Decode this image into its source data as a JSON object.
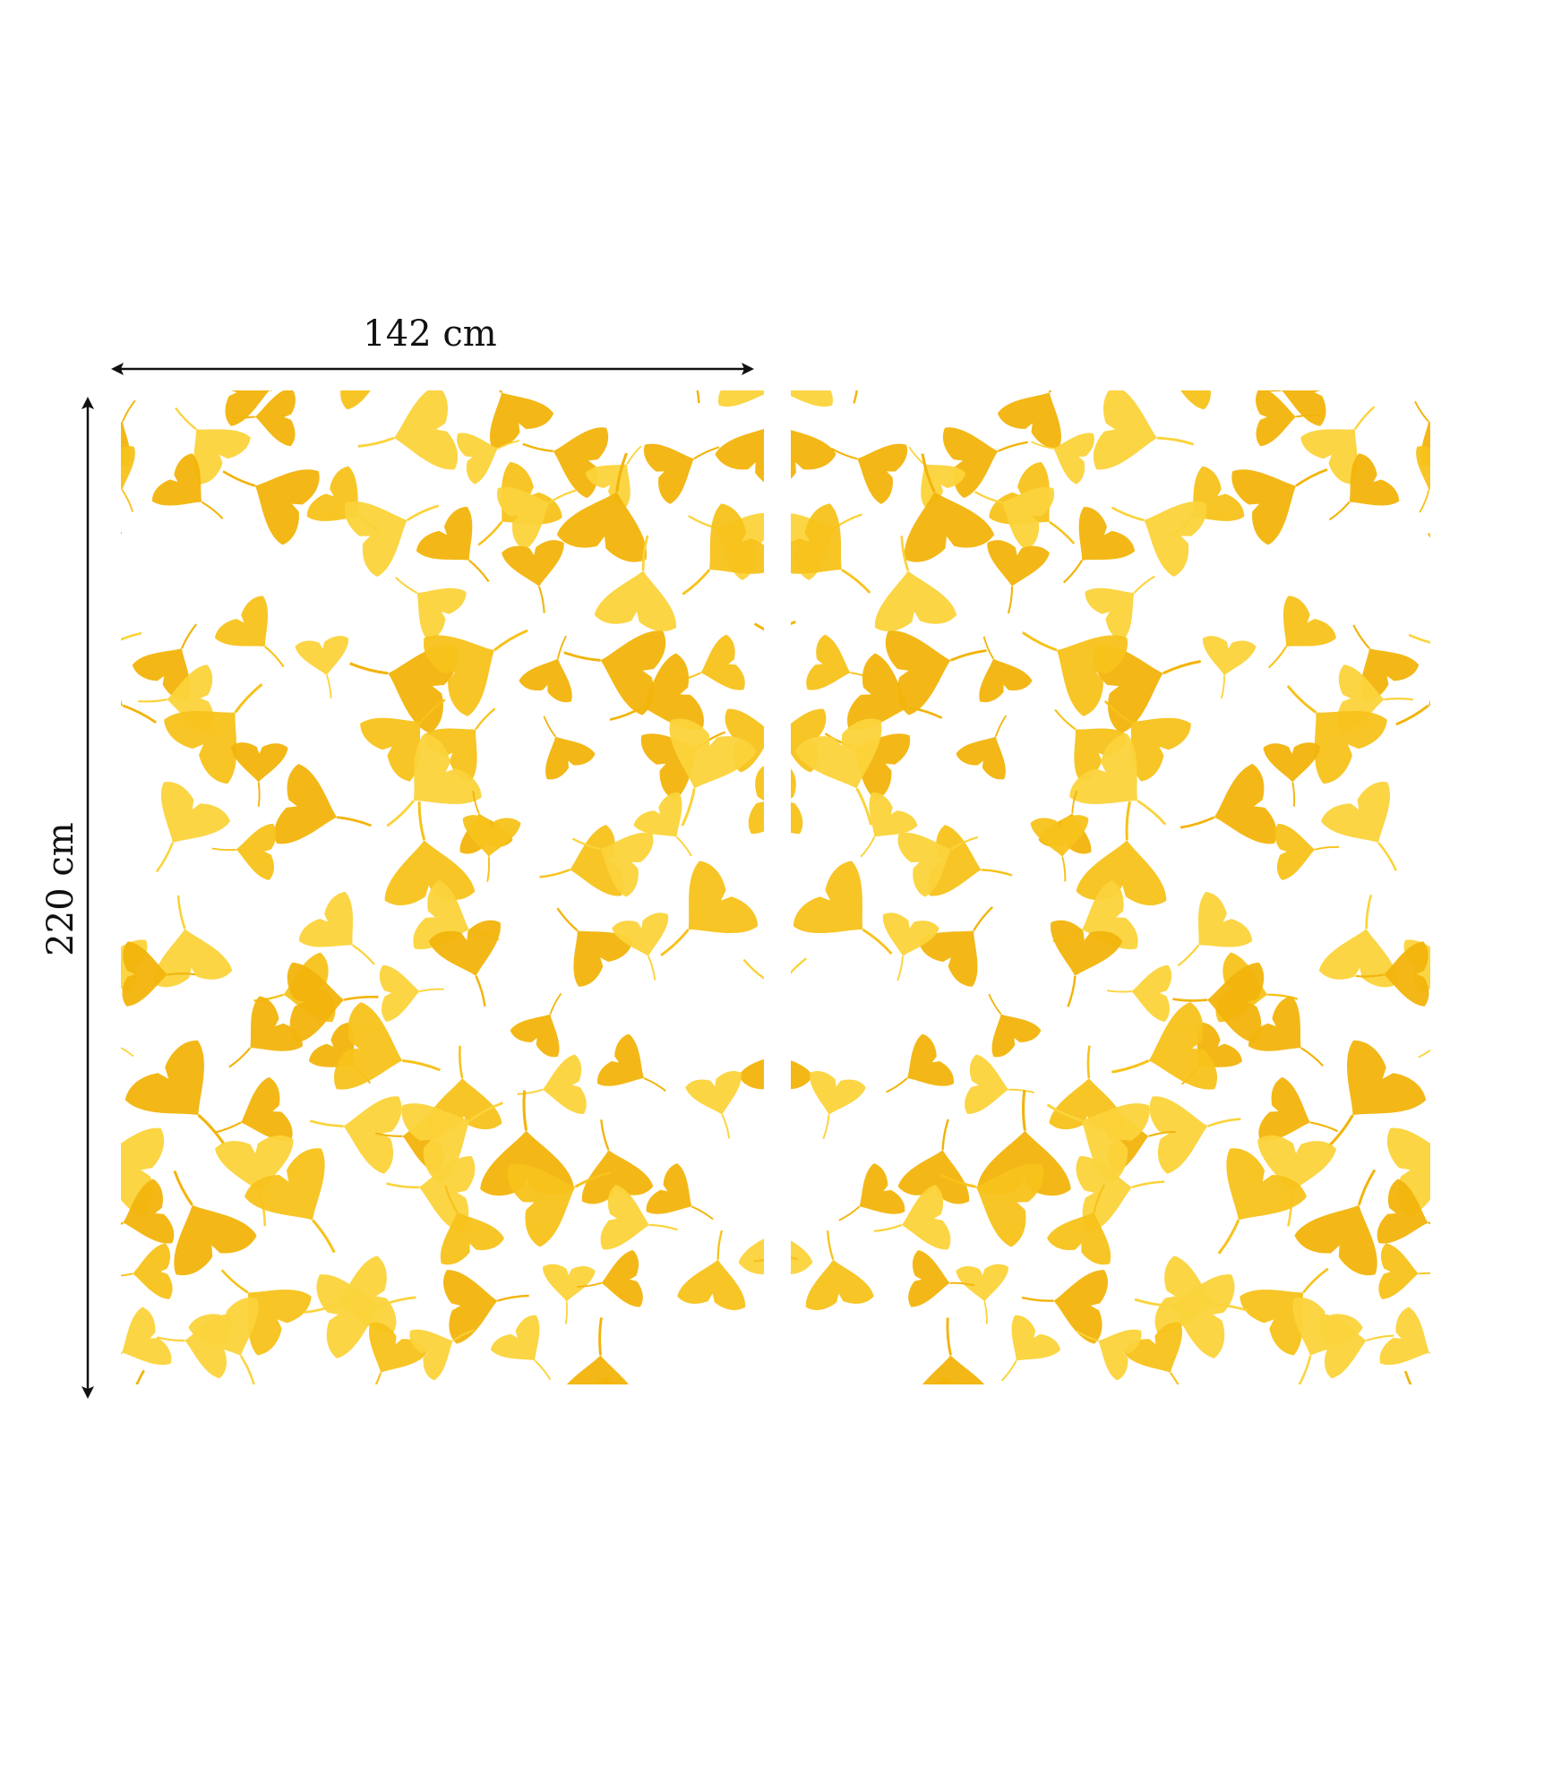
{
  "dimensions": {
    "width_label": "142 cm",
    "height_label": "220 cm"
  },
  "panels": [
    {
      "pattern": "ginkgo-leaves",
      "mirrored": false
    },
    {
      "pattern": "ginkgo-leaves",
      "mirrored": true
    }
  ],
  "colors": {
    "leaf_primary": "#f7c21a",
    "leaf_secondary": "#fbd33a",
    "leaf_dark": "#f2b40c",
    "background": "#ffffff",
    "arrow": "#111111"
  }
}
